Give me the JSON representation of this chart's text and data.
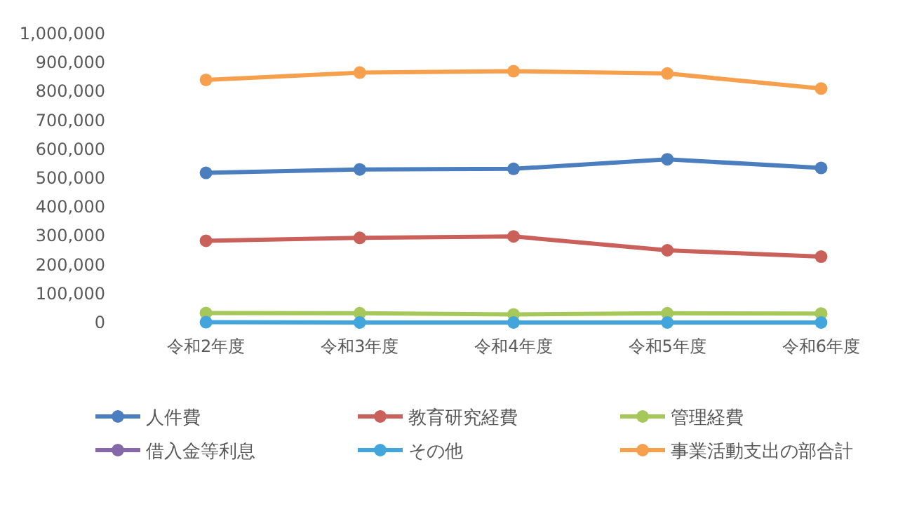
{
  "chart_data": {
    "type": "line",
    "categories": [
      "令和2年度",
      "令和3年度",
      "令和4年度",
      "令和5年度",
      "令和6年度"
    ],
    "ylim": [
      0,
      1000000
    ],
    "yticks": [
      {
        "value": 0,
        "label": "0"
      },
      {
        "value": 100000,
        "label": "100,000"
      },
      {
        "value": 200000,
        "label": "200,000"
      },
      {
        "value": 300000,
        "label": "300,000"
      },
      {
        "value": 400000,
        "label": "400,000"
      },
      {
        "value": 500000,
        "label": "500,000"
      },
      {
        "value": 600000,
        "label": "600,000"
      },
      {
        "value": 700000,
        "label": "700,000"
      },
      {
        "value": 800000,
        "label": "800,000"
      },
      {
        "value": 900000,
        "label": "900,000"
      },
      {
        "value": 1000000,
        "label": "1,000,000"
      }
    ],
    "marker": "circle",
    "legend": "bottom",
    "series": [
      {
        "name": "人件費",
        "color": "#4a7ebf",
        "values": [
          518000,
          530000,
          532000,
          565000,
          535000
        ]
      },
      {
        "name": "教育研究経費",
        "color": "#c9605a",
        "values": [
          283000,
          293000,
          298000,
          250000,
          228000
        ]
      },
      {
        "name": "管理経費",
        "color": "#a6c85a",
        "values": [
          33000,
          32000,
          28000,
          32000,
          31000
        ]
      },
      {
        "name": "借入金等利息",
        "color": "#8468a8",
        "values": [
          null,
          null,
          null,
          null,
          null
        ]
      },
      {
        "name": "その他",
        "color": "#42a5dc",
        "values": [
          1000,
          0,
          0,
          0,
          0
        ]
      },
      {
        "name": "事業活動支出の部合計",
        "color": "#f6a04d",
        "values": [
          840000,
          865000,
          870000,
          862000,
          810000
        ]
      }
    ]
  }
}
